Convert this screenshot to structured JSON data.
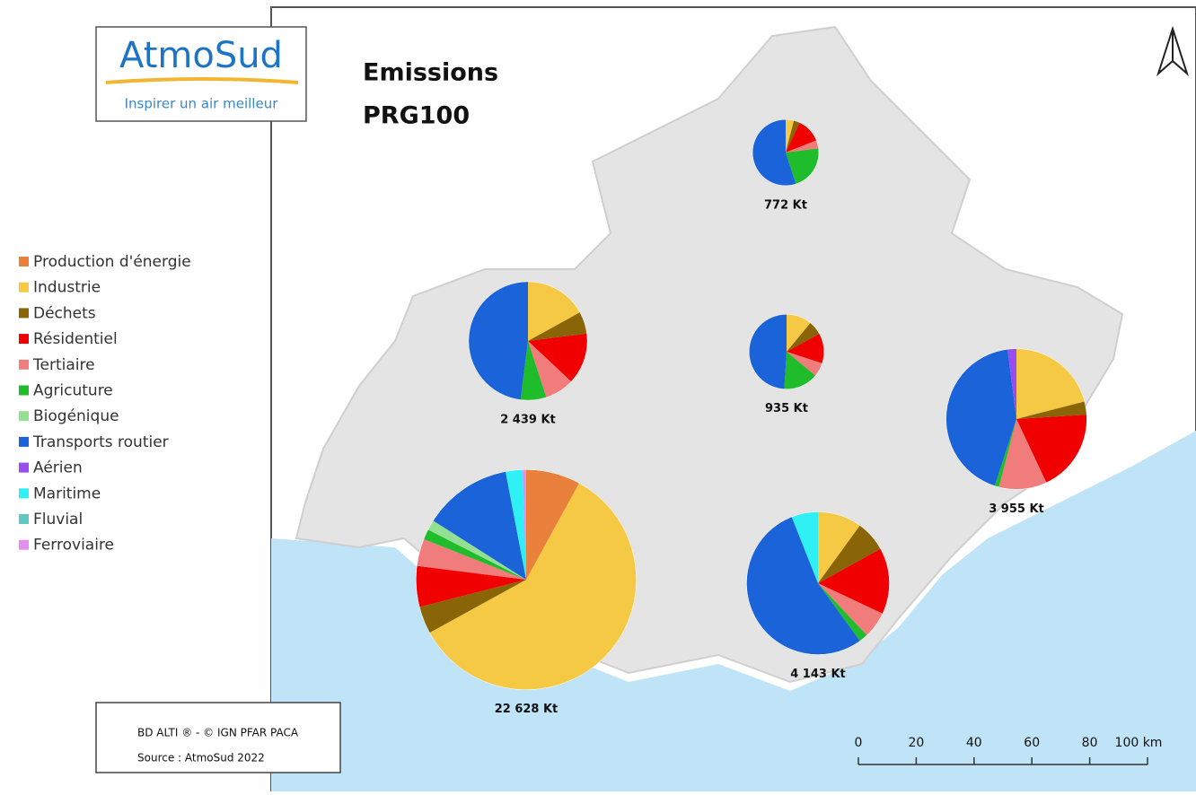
{
  "logo": {
    "name": "AtmoSud",
    "tagline": "Inspirer un air meilleur"
  },
  "map": {
    "title": [
      "Emissions",
      "PRG100"
    ],
    "legend": [
      {
        "name": "Production d'énergie",
        "color": "#e9803c"
      },
      {
        "name": "Industrie",
        "color": "#f5c944"
      },
      {
        "name": "Déchets",
        "color": "#8a6508"
      },
      {
        "name": "Résidentiel",
        "color": "#f00000"
      },
      {
        "name": "Tertiaire",
        "color": "#f07c7c"
      },
      {
        "name": "Agricuture",
        "color": "#1fbd2c"
      },
      {
        "name": "Biogénique",
        "color": "#93e093"
      },
      {
        "name": "Transports routier",
        "color": "#1a63d8"
      },
      {
        "name": "Aérien",
        "color": "#9a4cf0"
      },
      {
        "name": "Maritime",
        "color": "#2ff0f5"
      },
      {
        "name": "Fluvial",
        "color": "#5ec8c2"
      },
      {
        "name": "Ferroviaire",
        "color": "#e68ef0"
      }
    ],
    "pies": [
      {
        "total": 772,
        "total_label": "772 Kt",
        "values": [
          0,
          4,
          3,
          12,
          4,
          22,
          0,
          55,
          0,
          0,
          0,
          0
        ]
      },
      {
        "total": 2439,
        "total_label": "2 439 Kt",
        "values": [
          0,
          17,
          6,
          14,
          8,
          7,
          0,
          48,
          0,
          0,
          0,
          0
        ]
      },
      {
        "total": 935,
        "total_label": "935 Kt",
        "values": [
          0,
          11,
          6,
          13,
          6,
          15,
          0,
          49,
          0,
          0,
          0,
          0
        ]
      },
      {
        "total": 3955,
        "total_label": "3 955 Kt",
        "values": [
          0,
          21,
          3,
          19,
          11,
          1,
          0,
          43,
          2,
          0,
          0,
          0
        ]
      },
      {
        "total": 22628,
        "total_label": "22 628 Kt",
        "values": [
          8,
          59,
          4,
          6,
          4,
          1.5,
          1.5,
          13,
          0,
          2.5,
          0,
          0.5
        ]
      },
      {
        "total": 4143,
        "total_label": "4 143 Kt",
        "values": [
          0,
          10,
          7,
          15,
          6,
          2,
          0,
          54,
          0,
          6,
          0,
          0
        ]
      }
    ],
    "scale_ticks": [
      0,
      20,
      40,
      60,
      80,
      {
        "value": 100,
        "label": "100 km"
      }
    ],
    "credits": [
      "BD ALTI ® - © IGN PFAR PACA",
      "Source : AtmoSud 2022"
    ]
  }
}
